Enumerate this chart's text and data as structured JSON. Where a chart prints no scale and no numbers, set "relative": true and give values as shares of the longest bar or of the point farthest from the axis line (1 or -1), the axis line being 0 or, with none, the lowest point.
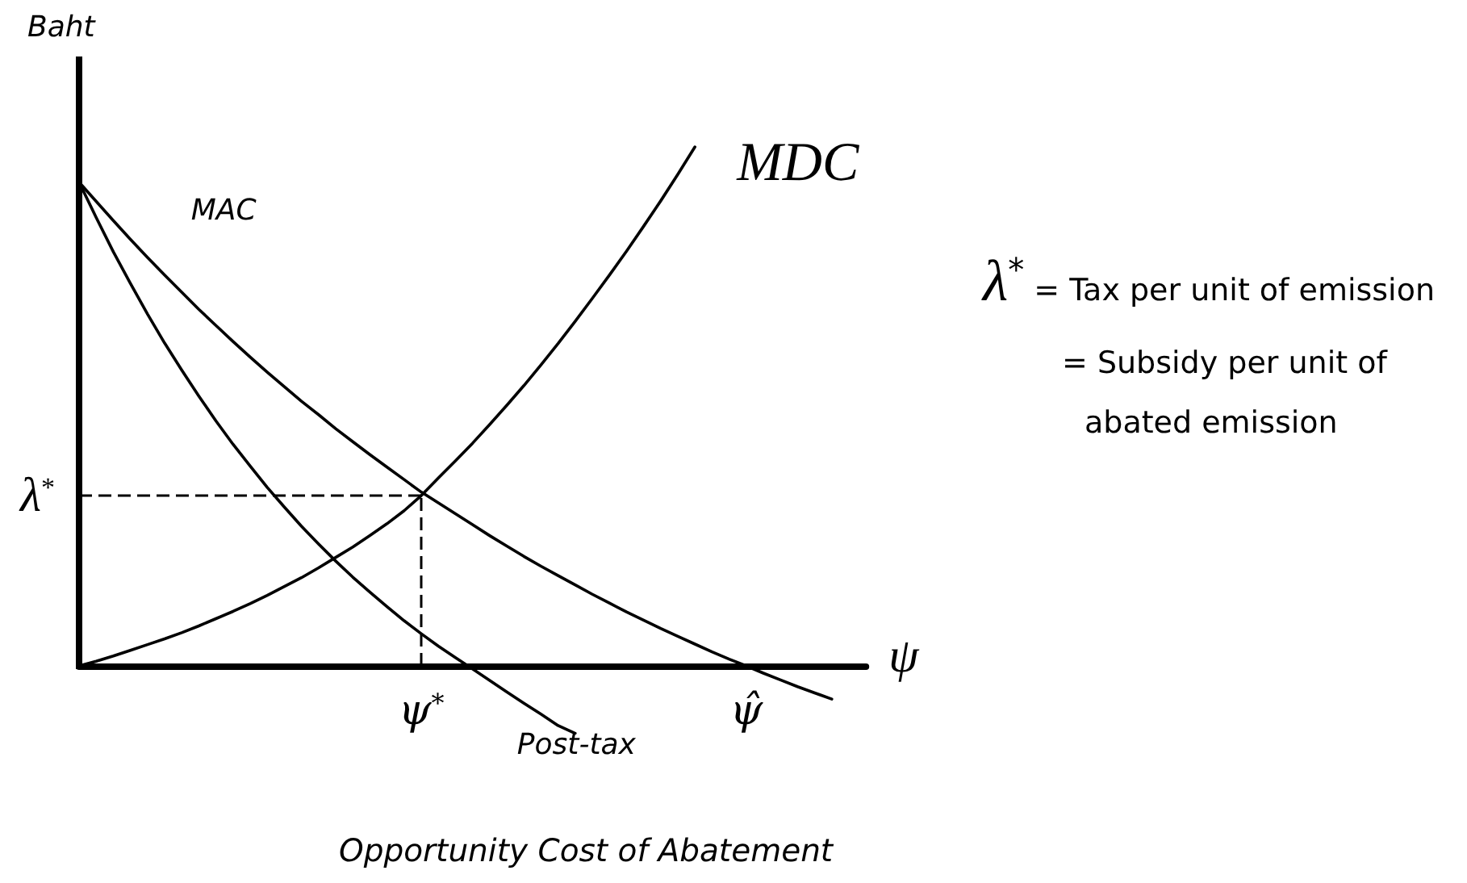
{
  "chart_data": {
    "type": "line",
    "relative": true,
    "title": "Opportunity Cost of Abatement",
    "xlabel": "ψ",
    "ylabel": "Baht",
    "marker": "none",
    "categories": [
      null,
      null,
      null,
      null,
      null,
      null,
      null,
      null,
      null,
      null,
      null,
      null,
      null,
      null,
      null,
      null,
      null,
      null,
      null,
      null,
      "ψ$^{*}$",
      null,
      null,
      null,
      null,
      null,
      null,
      null,
      null,
      null,
      null,
      null,
      null,
      null,
      null,
      null,
      null,
      null,
      null,
      "ψ̂",
      null,
      null,
      null,
      null,
      null,
      null,
      null
    ],
    "series": [
      {
        "name": "MAC",
        "color": "#000000",
        "values": [
          0.932,
          0.895,
          0.858,
          0.822,
          0.787,
          0.753,
          0.72,
          0.687,
          0.656,
          0.625,
          0.595,
          0.566,
          0.538,
          0.51,
          0.484,
          0.457,
          0.432,
          0.407,
          0.383,
          0.359,
          0.335,
          0.314,
          0.293,
          0.272,
          0.251,
          0.231,
          0.211,
          0.192,
          0.174,
          0.156,
          0.138,
          0.121,
          0.104,
          0.088,
          0.072,
          0.057,
          0.042,
          0.027,
          0.013,
          0,
          -0.014,
          -0.027,
          -0.04,
          -0.052,
          -0.064,
          null,
          null
        ]
      },
      {
        "name": "MDC",
        "color": "#000000",
        "values": [
          0,
          0.009,
          0.019,
          0.03,
          0.041,
          0.052,
          0.064,
          0.077,
          0.091,
          0.105,
          0.12,
          0.136,
          0.153,
          0.17,
          0.189,
          0.209,
          0.229,
          0.251,
          0.274,
          0.299,
          0.328,
          0.362,
          0.395,
          0.429,
          0.465,
          0.502,
          0.54,
          0.58,
          0.621,
          0.664,
          0.708,
          0.753,
          0.799,
          0.847,
          0.896,
          0.947,
          1,
          null,
          null,
          null,
          null,
          null,
          null,
          null,
          null,
          null,
          null
        ]
      },
      {
        "name": "Post-tax",
        "color": "#000000",
        "values": [
          0.932,
          0.864,
          0.798,
          0.737,
          0.678,
          0.622,
          0.57,
          0.52,
          0.472,
          0.427,
          0.385,
          0.344,
          0.306,
          0.269,
          0.235,
          0.202,
          0.171,
          0.142,
          0.114,
          0.087,
          0.062,
          0.038,
          0.016,
          -0.006,
          -0.028,
          -0.05,
          -0.072,
          -0.093,
          -0.115,
          -0.13,
          null,
          null,
          null,
          null,
          null,
          null,
          null,
          null,
          null,
          null,
          null,
          null,
          null,
          null,
          null,
          null,
          null
        ]
      }
    ],
    "ref_lines": [
      {
        "axis": "y",
        "value": 0.33,
        "label": "λ$^{*}$",
        "line_style": "dashed",
        "color": "#000000"
      },
      {
        "axis": "x",
        "value": "ψ$^{*}$",
        "line_style": "dashed",
        "color": "#000000"
      }
    ],
    "annotations": [
      "λ$^{*}$ = Tax per unit of emission\n= Subsidy per unit of\nabated emission"
    ]
  }
}
